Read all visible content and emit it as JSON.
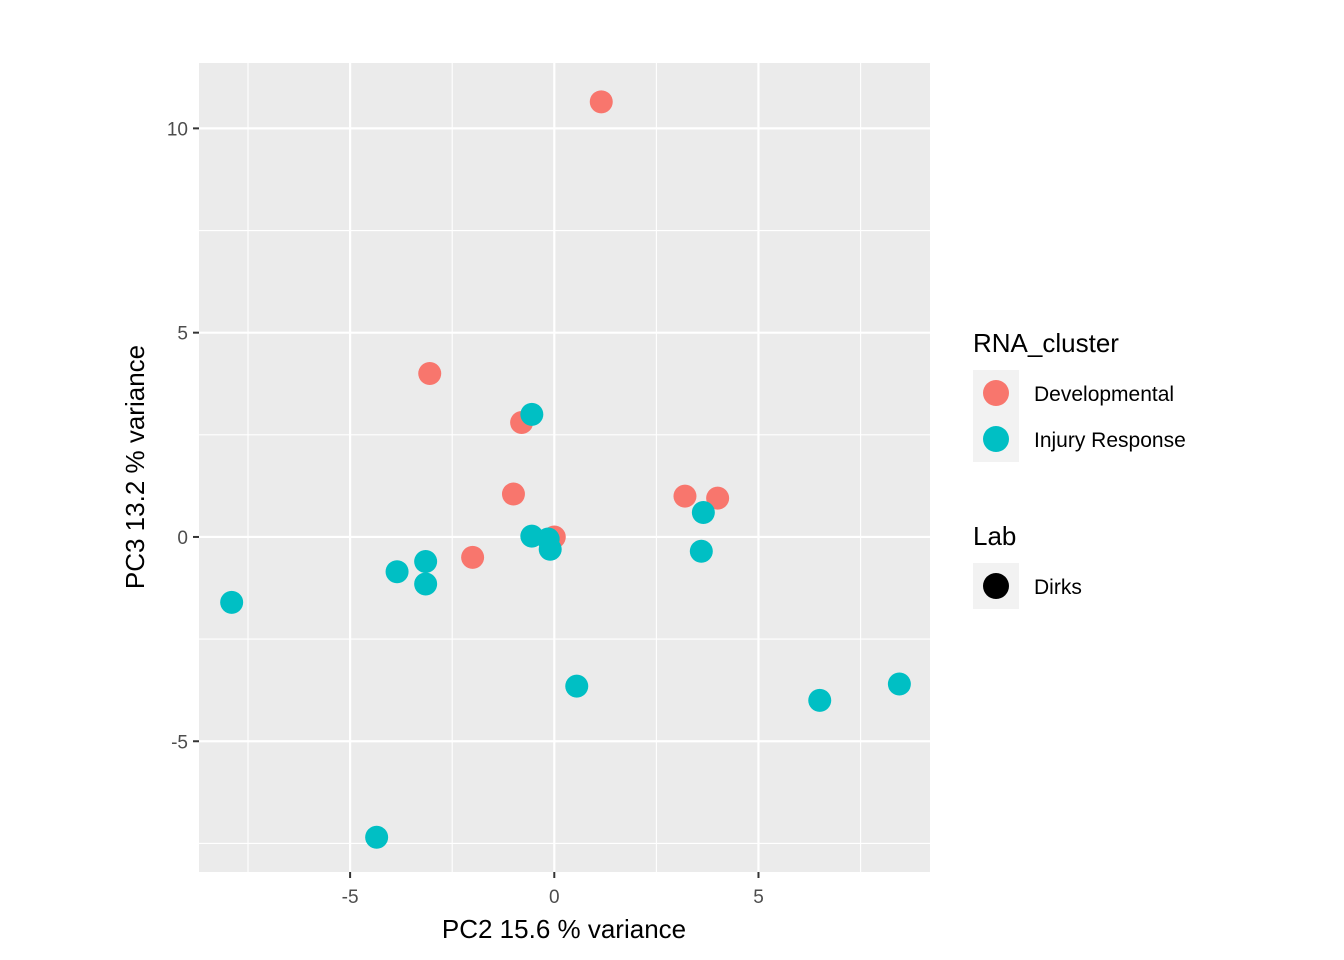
{
  "chart_data": {
    "type": "scatter",
    "xlabel": "PC2 15.6 % variance",
    "ylabel": "PC3 13.2 % variance",
    "xlim": [
      -8.7,
      9.2
    ],
    "ylim": [
      -8.2,
      11.6
    ],
    "x_ticks": [
      -5,
      0,
      5
    ],
    "y_ticks": [
      -5,
      0,
      5,
      10
    ],
    "x_tick_labels": [
      "-5",
      "0",
      "5"
    ],
    "y_tick_labels": [
      "-5",
      "0",
      "5",
      "10"
    ],
    "grid": true,
    "legend_position": "right",
    "series": [
      {
        "name": "Developmental",
        "color": "#F8766D",
        "points": [
          {
            "x": 1.15,
            "y": 10.65
          },
          {
            "x": -3.05,
            "y": 4.0
          },
          {
            "x": -0.8,
            "y": 2.8
          },
          {
            "x": -1.0,
            "y": 1.05
          },
          {
            "x": 3.2,
            "y": 1.0
          },
          {
            "x": 4.0,
            "y": 0.95
          },
          {
            "x": 0.0,
            "y": 0.0
          },
          {
            "x": -2.0,
            "y": -0.5
          }
        ]
      },
      {
        "name": "Injury Response",
        "color": "#00BFC4",
        "points": [
          {
            "x": -0.55,
            "y": 3.0
          },
          {
            "x": 3.65,
            "y": 0.6
          },
          {
            "x": -0.55,
            "y": 0.02
          },
          {
            "x": -0.15,
            "y": -0.05
          },
          {
            "x": -0.1,
            "y": -0.3
          },
          {
            "x": 3.6,
            "y": -0.35
          },
          {
            "x": -3.15,
            "y": -0.6
          },
          {
            "x": -3.85,
            "y": -0.85
          },
          {
            "x": -3.15,
            "y": -1.15
          },
          {
            "x": -7.9,
            "y": -1.6
          },
          {
            "x": 0.55,
            "y": -3.65
          },
          {
            "x": 6.5,
            "y": -4.0
          },
          {
            "x": 8.45,
            "y": -3.6
          },
          {
            "x": -4.35,
            "y": -7.35
          }
        ]
      }
    ],
    "legends": [
      {
        "title": "RNA_cluster",
        "items": [
          {
            "label": "Developmental",
            "color": "#F8766D"
          },
          {
            "label": "Injury Response",
            "color": "#00BFC4"
          }
        ]
      },
      {
        "title": "Lab",
        "items": [
          {
            "label": "Dirks",
            "color": "#000000"
          }
        ]
      }
    ]
  },
  "style": {
    "panel_background": "#EBEBEB",
    "gridline_color": "#FFFFFF",
    "legend_key_background": "#F2F2F2"
  }
}
